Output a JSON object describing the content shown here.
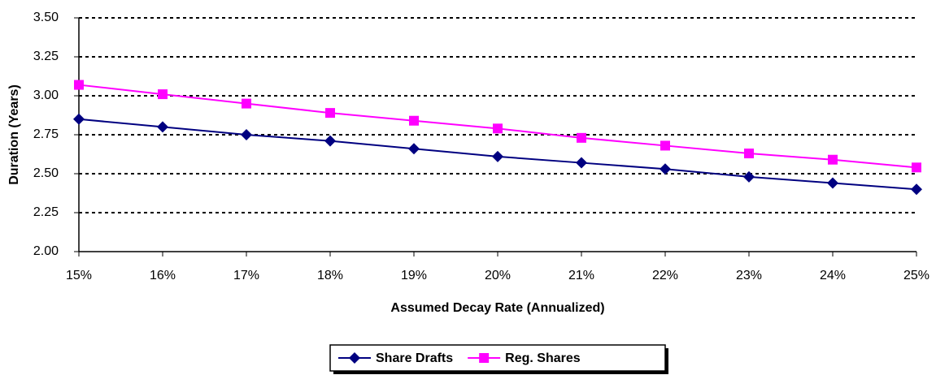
{
  "chart_data": {
    "type": "line",
    "x_label": "Assumed Decay Rate (Annualized)",
    "y_label": "Duration (Years)",
    "categories": [
      "15%",
      "16%",
      "17%",
      "18%",
      "19%",
      "20%",
      "21%",
      "22%",
      "23%",
      "24%",
      "25%"
    ],
    "series": [
      {
        "name": "Share Drafts",
        "color": "#000080",
        "marker": "diamond",
        "values": [
          2.85,
          2.8,
          2.75,
          2.71,
          2.66,
          2.61,
          2.57,
          2.53,
          2.48,
          2.44,
          2.4
        ]
      },
      {
        "name": "Reg. Shares",
        "color": "#FF00FF",
        "marker": "square",
        "values": [
          3.07,
          3.01,
          2.95,
          2.89,
          2.84,
          2.79,
          2.73,
          2.68,
          2.63,
          2.59,
          2.54
        ]
      }
    ],
    "ylim": [
      2,
      3.5
    ],
    "yticks": [
      {
        "value": 2,
        "label": "2.00"
      },
      {
        "value": 2.25,
        "label": "2.25"
      },
      {
        "value": 2.5,
        "label": "2.50"
      },
      {
        "value": 2.75,
        "label": "2.75"
      },
      {
        "value": 3,
        "label": "3.00"
      },
      {
        "value": 3.25,
        "label": "3.25"
      },
      {
        "value": 3.5,
        "label": "3.50"
      }
    ],
    "grid": true,
    "legend": "bottom"
  }
}
